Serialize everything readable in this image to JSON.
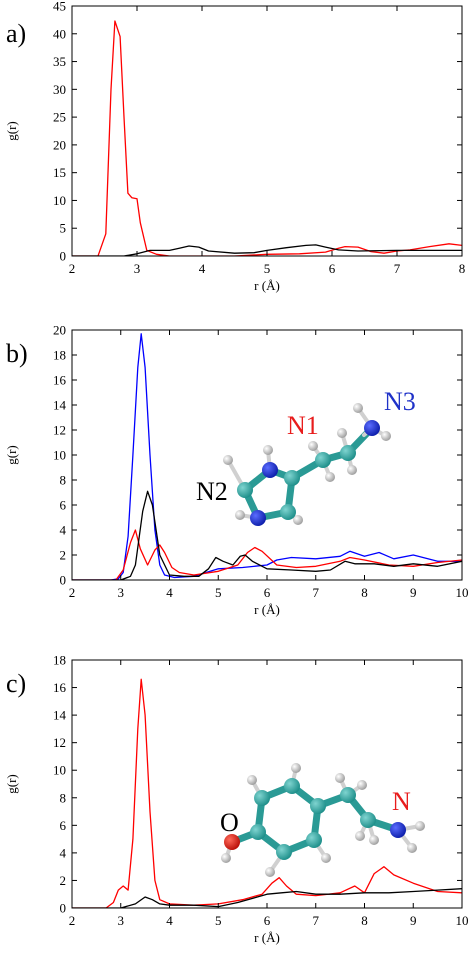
{
  "chart_data": [
    {
      "type": "line",
      "panel_label": "a)",
      "xlabel": "r (Å)",
      "ylabel": "g(r)",
      "xlim": [
        2,
        8
      ],
      "ylim": [
        0,
        45
      ],
      "xticks": [
        2,
        3,
        4,
        5,
        6,
        7,
        8
      ],
      "yticks": [
        0,
        5,
        10,
        15,
        20,
        25,
        30,
        35,
        40,
        45
      ],
      "grid": false,
      "series": [
        {
          "color": "#ff0000",
          "points": [
            [
              2.0,
              0
            ],
            [
              2.4,
              0
            ],
            [
              2.52,
              4
            ],
            [
              2.6,
              30
            ],
            [
              2.66,
              42.3
            ],
            [
              2.74,
              39.5
            ],
            [
              2.8,
              25
            ],
            [
              2.86,
              11.3
            ],
            [
              2.92,
              10.5
            ],
            [
              3.0,
              10.3
            ],
            [
              3.05,
              6
            ],
            [
              3.15,
              1
            ],
            [
              3.3,
              0.3
            ],
            [
              3.5,
              0
            ],
            [
              4.0,
              0
            ],
            [
              4.5,
              0
            ],
            [
              5.0,
              0.3
            ],
            [
              5.5,
              0.4
            ],
            [
              5.9,
              0.7
            ],
            [
              6.1,
              1.4
            ],
            [
              6.2,
              1.7
            ],
            [
              6.4,
              1.6
            ],
            [
              6.6,
              0.8
            ],
            [
              6.8,
              0.5
            ],
            [
              7.0,
              0.9
            ],
            [
              7.2,
              1.1
            ],
            [
              7.5,
              1.7
            ],
            [
              7.8,
              2.2
            ],
            [
              8.0,
              1.9
            ]
          ]
        },
        {
          "color": "#000000",
          "points": [
            [
              2.0,
              0
            ],
            [
              2.5,
              0
            ],
            [
              2.8,
              0
            ],
            [
              3.0,
              0.4
            ],
            [
              3.2,
              1.0
            ],
            [
              3.5,
              1.0
            ],
            [
              3.65,
              1.4
            ],
            [
              3.8,
              1.8
            ],
            [
              3.95,
              1.6
            ],
            [
              4.1,
              0.9
            ],
            [
              4.5,
              0.5
            ],
            [
              4.8,
              0.6
            ],
            [
              5.0,
              1.0
            ],
            [
              5.3,
              1.5
            ],
            [
              5.6,
              1.9
            ],
            [
              5.75,
              2.0
            ],
            [
              5.9,
              1.6
            ],
            [
              6.1,
              1.1
            ],
            [
              6.4,
              0.9
            ],
            [
              7.0,
              1.0
            ],
            [
              7.5,
              1.0
            ],
            [
              8.0,
              1.0
            ]
          ]
        }
      ]
    },
    {
      "type": "line",
      "panel_label": "b)",
      "xlabel": "r (Å)",
      "ylabel": "g(r)",
      "xlim": [
        2,
        10
      ],
      "ylim": [
        0,
        20
      ],
      "xticks": [
        2,
        3,
        4,
        5,
        6,
        7,
        8,
        9,
        10
      ],
      "yticks": [
        0,
        2,
        4,
        6,
        8,
        10,
        12,
        14,
        16,
        18,
        20
      ],
      "grid": false,
      "annotations": [
        {
          "text": "N1",
          "color": "#e81c1c"
        },
        {
          "text": "N2",
          "color": "#000000"
        },
        {
          "text": "N3",
          "color": "#1f32c8"
        }
      ],
      "series": [
        {
          "color": "#0000ff",
          "points": [
            [
              2.0,
              0
            ],
            [
              2.8,
              0
            ],
            [
              2.95,
              0.1
            ],
            [
              3.05,
              0.6
            ],
            [
              3.15,
              3.5
            ],
            [
              3.25,
              10
            ],
            [
              3.35,
              17
            ],
            [
              3.42,
              19.7
            ],
            [
              3.5,
              17
            ],
            [
              3.6,
              10
            ],
            [
              3.7,
              4
            ],
            [
              3.8,
              1.2
            ],
            [
              3.9,
              0.4
            ],
            [
              4.1,
              0.2
            ],
            [
              4.5,
              0.3
            ],
            [
              5.0,
              0.9
            ],
            [
              5.5,
              1.0
            ],
            [
              6.0,
              1.2
            ],
            [
              6.2,
              1.6
            ],
            [
              6.5,
              1.8
            ],
            [
              7.0,
              1.7
            ],
            [
              7.5,
              1.9
            ],
            [
              7.7,
              2.3
            ],
            [
              8.0,
              1.9
            ],
            [
              8.3,
              2.2
            ],
            [
              8.6,
              1.7
            ],
            [
              9.0,
              2.0
            ],
            [
              9.5,
              1.5
            ],
            [
              10.0,
              1.5
            ]
          ]
        },
        {
          "color": "#ff0000",
          "points": [
            [
              2.0,
              0
            ],
            [
              2.9,
              0
            ],
            [
              3.05,
              0.8
            ],
            [
              3.2,
              3.0
            ],
            [
              3.3,
              4.0
            ],
            [
              3.4,
              2.5
            ],
            [
              3.55,
              1.2
            ],
            [
              3.7,
              2.4
            ],
            [
              3.8,
              2.8
            ],
            [
              3.9,
              2.2
            ],
            [
              4.05,
              1.0
            ],
            [
              4.2,
              0.6
            ],
            [
              4.5,
              0.4
            ],
            [
              5.0,
              0.7
            ],
            [
              5.4,
              1.2
            ],
            [
              5.6,
              2.2
            ],
            [
              5.75,
              2.6
            ],
            [
              5.9,
              2.3
            ],
            [
              6.2,
              1.2
            ],
            [
              6.6,
              1.0
            ],
            [
              7.0,
              1.1
            ],
            [
              7.5,
              1.5
            ],
            [
              7.7,
              1.8
            ],
            [
              8.0,
              1.6
            ],
            [
              8.5,
              1.2
            ],
            [
              9.0,
              1.1
            ],
            [
              9.5,
              1.4
            ],
            [
              10.0,
              1.6
            ]
          ]
        },
        {
          "color": "#000000",
          "points": [
            [
              2.0,
              0
            ],
            [
              3.0,
              0
            ],
            [
              3.2,
              0.3
            ],
            [
              3.3,
              1.2
            ],
            [
              3.45,
              5.5
            ],
            [
              3.55,
              7.1
            ],
            [
              3.65,
              6.0
            ],
            [
              3.8,
              2.0
            ],
            [
              4.0,
              0.4
            ],
            [
              4.3,
              0.3
            ],
            [
              4.6,
              0.3
            ],
            [
              4.8,
              0.9
            ],
            [
              4.95,
              1.8
            ],
            [
              5.1,
              1.5
            ],
            [
              5.3,
              1.2
            ],
            [
              5.45,
              1.9
            ],
            [
              5.55,
              2.0
            ],
            [
              5.7,
              1.5
            ],
            [
              6.0,
              0.9
            ],
            [
              6.5,
              0.8
            ],
            [
              7.0,
              0.7
            ],
            [
              7.3,
              0.8
            ],
            [
              7.6,
              1.5
            ],
            [
              7.8,
              1.3
            ],
            [
              8.2,
              1.3
            ],
            [
              8.6,
              1.1
            ],
            [
              9.0,
              1.3
            ],
            [
              9.5,
              1.1
            ],
            [
              10.0,
              1.5
            ]
          ]
        }
      ]
    },
    {
      "type": "line",
      "panel_label": "c)",
      "xlabel": "r (Å)",
      "ylabel": "g(r)",
      "xlim": [
        2,
        10
      ],
      "ylim": [
        0,
        18
      ],
      "xticks": [
        2,
        3,
        4,
        5,
        6,
        7,
        8,
        9,
        10
      ],
      "yticks": [
        0,
        2,
        4,
        6,
        8,
        10,
        12,
        14,
        16,
        18
      ],
      "grid": false,
      "annotations": [
        {
          "text": "O",
          "color": "#000000"
        },
        {
          "text": "N",
          "color": "#e81c1c"
        }
      ],
      "series": [
        {
          "color": "#ff0000",
          "points": [
            [
              2.0,
              0
            ],
            [
              2.7,
              0
            ],
            [
              2.85,
              0.4
            ],
            [
              2.95,
              1.3
            ],
            [
              3.05,
              1.6
            ],
            [
              3.15,
              1.3
            ],
            [
              3.25,
              5
            ],
            [
              3.35,
              13
            ],
            [
              3.42,
              16.6
            ],
            [
              3.5,
              14
            ],
            [
              3.6,
              7
            ],
            [
              3.7,
              2
            ],
            [
              3.8,
              0.6
            ],
            [
              4.0,
              0.3
            ],
            [
              4.5,
              0.2
            ],
            [
              5.0,
              0.3
            ],
            [
              5.5,
              0.6
            ],
            [
              5.9,
              1.0
            ],
            [
              6.1,
              1.8
            ],
            [
              6.25,
              2.2
            ],
            [
              6.4,
              1.6
            ],
            [
              6.6,
              1.0
            ],
            [
              7.0,
              0.9
            ],
            [
              7.5,
              1.1
            ],
            [
              7.8,
              1.6
            ],
            [
              8.0,
              1.1
            ],
            [
              8.2,
              2.5
            ],
            [
              8.4,
              3.0
            ],
            [
              8.6,
              2.4
            ],
            [
              9.0,
              1.8
            ],
            [
              9.5,
              1.2
            ],
            [
              10.0,
              1.1
            ]
          ]
        },
        {
          "color": "#000000",
          "points": [
            [
              2.0,
              0
            ],
            [
              3.0,
              0
            ],
            [
              3.3,
              0.3
            ],
            [
              3.5,
              0.8
            ],
            [
              3.65,
              0.6
            ],
            [
              3.8,
              0.3
            ],
            [
              4.0,
              0.2
            ],
            [
              4.5,
              0.2
            ],
            [
              5.0,
              0.1
            ],
            [
              5.4,
              0.4
            ],
            [
              5.8,
              0.8
            ],
            [
              6.0,
              1.0
            ],
            [
              6.3,
              1.1
            ],
            [
              6.6,
              1.2
            ],
            [
              7.0,
              1.0
            ],
            [
              7.5,
              1.0
            ],
            [
              8.0,
              1.1
            ],
            [
              8.5,
              1.1
            ],
            [
              9.0,
              1.2
            ],
            [
              9.5,
              1.3
            ],
            [
              10.0,
              1.4
            ]
          ]
        }
      ]
    }
  ]
}
